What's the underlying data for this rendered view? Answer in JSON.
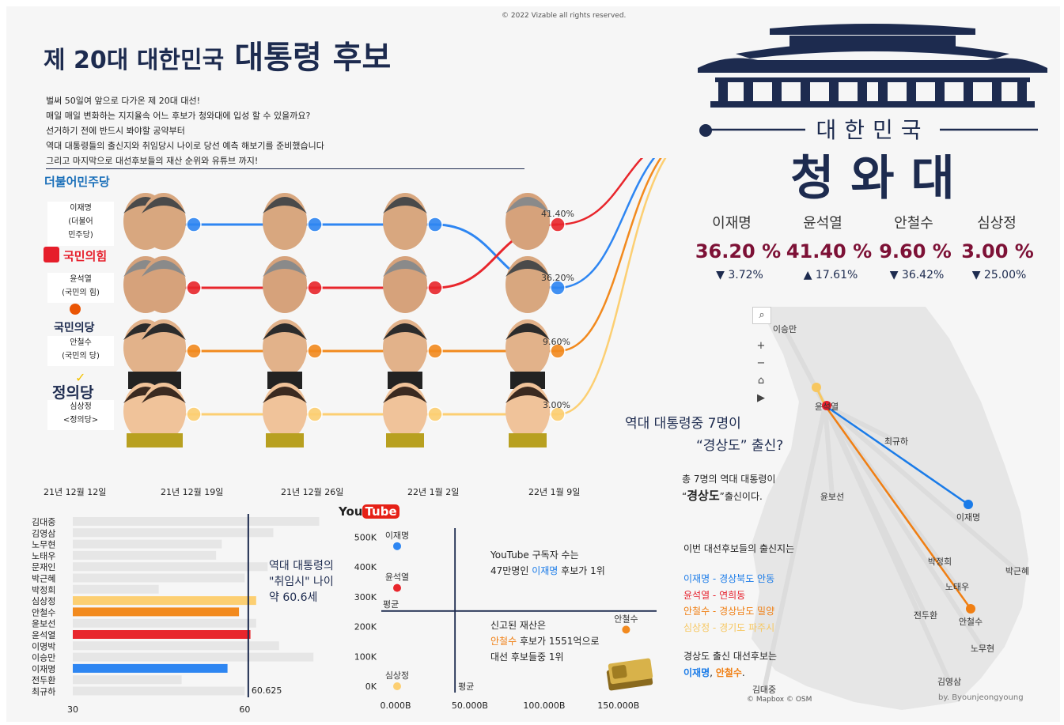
{
  "copyright": "© 2022 Vizable all rights reserved.",
  "title": {
    "part1": "제 20대 대한민국",
    "part2": "대통령 후보"
  },
  "intro": [
    "벌써 50일여 앞으로 다가온 제 20대 대선!",
    "매일 매일 변화하는 지지율속 어느 후보가 청와대에 입성 할 수 있을까요?",
    "선거하기 전에 반드시 봐야할 공약부터",
    "역대 대통령들의 출신지와 취임당시 나이로 당선 예측 해보기를 준비했습니다",
    "그리고 마지막으로 대선후보들의 재산 순위와 유튜브 까지!"
  ],
  "logo": {
    "top": "대한민국",
    "bottom": "청 와 대"
  },
  "parties": [
    {
      "logo": "더불어민주당",
      "color": "#1a6fb9",
      "line1": "이재명",
      "line2": "(더불어",
      "line3": "민주당)"
    },
    {
      "logo": "국민의힘",
      "color": "#e61e2b",
      "line1": "윤석열",
      "line2": "(국민의 힘)",
      "line3": ""
    },
    {
      "logo": "국민의당",
      "color": "#ea5504",
      "line1": "안철수",
      "line2": "(국민의 당)",
      "line3": ""
    },
    {
      "logo": "정의당",
      "color": "#1d2b4f",
      "line1": "심상정",
      "line2": "<정의당>",
      "line3": ""
    }
  ],
  "stats": [
    {
      "name": "이재명",
      "pct": "36.20 %",
      "chg_arrow": "▼",
      "chg": "3.72%"
    },
    {
      "name": "윤석열",
      "pct": "41.40 %",
      "chg_arrow": "▲",
      "chg": "17.61%"
    },
    {
      "name": "안철수",
      "pct": "9.60 %",
      "chg_arrow": "▼",
      "chg": "36.42%"
    },
    {
      "name": "심상정",
      "pct": "3.00 %",
      "chg_arrow": "▼",
      "chg": "25.00%"
    }
  ],
  "bump_labels": {
    "yoon": "41.40%",
    "lee": "36.20%",
    "ahn": "9.60%",
    "sim": "3.00%"
  },
  "map": {
    "heading1": "역대 대통령중 7명이",
    "heading2": "“경상도” 출신?",
    "sub1": "총 7명의 역대 대통령이",
    "sub2a": "“",
    "sub2b": "경상도",
    "sub2c": "”출신이다.",
    "born_title": "이번 대선후보들의 출신지는",
    "born": [
      {
        "text": "이재명 - 경상북도 안동",
        "color": "#1a7be8"
      },
      {
        "text": "윤석열 -  연희동",
        "color": "#e61e2b"
      },
      {
        "text": "안철수 - 경상남도 밀양",
        "color": "#f07f13"
      },
      {
        "text": "심상정 - 경기도 파주시",
        "color": "#f7c760"
      }
    ],
    "gs_title": "경상도 출신 대선후보는",
    "gs_a": "이재명",
    "gs_sep": ", ",
    "gs_b": "안철수",
    "gs_end": ".",
    "credit": "© Mapbox  © OSM",
    "author": "by. Byounjeongyoung",
    "buttons": [
      "search-icon",
      "zoom-in-icon",
      "zoom-out-icon",
      "home-icon",
      "play-icon"
    ],
    "cities": [
      "이승만",
      "윤석열",
      "최규하",
      "윤보선",
      "이재명",
      "박정희",
      "박근혜",
      "노태우",
      "전두환",
      "안철수",
      "노무현",
      "김영삼",
      "김대중"
    ]
  },
  "age_note": {
    "l1": "역대 대통령의",
    "l2": "\"취임시\" 나이",
    "l3": "약 60.6세"
  },
  "yt_note": {
    "l1": "YouTube 구독자 수는",
    "l2a": "47만명인 ",
    "l2b": "이재명",
    "l2c": " 후보가 1위"
  },
  "asset_note": {
    "l1": "신고된 재산은",
    "l2a": "안철수",
    "l2b": " 후보가 1551억으로",
    "l3": "대선 후보들중 1위"
  },
  "youtube_logo": {
    "you": "You",
    "tube": "Tube"
  },
  "chart_data": [
    {
      "type": "line",
      "title": "",
      "categories": [
        "21년 12월 12일",
        "21년 12월 19일",
        "21년 12월 26일",
        "22년 1월 2일",
        "22년 1월 9일"
      ],
      "series": [
        {
          "name": "이재명",
          "rank": [
            1,
            1,
            1,
            1,
            2
          ],
          "color": "#2e86f2"
        },
        {
          "name": "윤석열",
          "rank": [
            2,
            2,
            2,
            2,
            1
          ],
          "color": "#e8262c"
        },
        {
          "name": "안철수",
          "rank": [
            3,
            3,
            3,
            3,
            3
          ],
          "color": "#f28a1e"
        },
        {
          "name": "심상정",
          "rank": [
            4,
            4,
            4,
            4,
            4
          ],
          "color": "#fccf72"
        }
      ],
      "final_values": [
        36.2,
        41.4,
        9.6,
        3.0
      ]
    },
    {
      "type": "bar",
      "title": "",
      "categories": [
        "김대중",
        "김영삼",
        "노무현",
        "노태우",
        "문재인",
        "박근혜",
        "박정희",
        "심상정",
        "안철수",
        "윤보선",
        "윤석열",
        "이명박",
        "이승만",
        "이재명",
        "전두환",
        "최규하"
      ],
      "values": [
        73,
        65,
        56,
        55,
        64,
        60,
        45,
        62,
        59,
        62,
        61,
        66,
        72,
        57,
        49,
        60
      ],
      "colors": [
        "#e6e6e6",
        "#e6e6e6",
        "#e6e6e6",
        "#e6e6e6",
        "#e6e6e6",
        "#e6e6e6",
        "#e6e6e6",
        "#fccf72",
        "#f28a1e",
        "#e6e6e6",
        "#e8262c",
        "#e6e6e6",
        "#e6e6e6",
        "#2e86f2",
        "#e6e6e6",
        "#e6e6e6"
      ],
      "xlim": [
        30,
        75
      ],
      "xticks": [
        30,
        60
      ],
      "reference_line": 60.625,
      "reference_label": "60.625"
    },
    {
      "type": "scatter",
      "title": "",
      "points": [
        {
          "name": "이재명",
          "x": 1,
          "y": 470000,
          "color": "#2e86f2"
        },
        {
          "name": "윤석열",
          "x": 3,
          "y": 330000,
          "color": "#e8262c"
        },
        {
          "name": "안철수",
          "x": 155100,
          "y": 190000,
          "color": "#f28a1e"
        },
        {
          "name": "심상정",
          "x": 1,
          "y": 0,
          "color": "#fccf72"
        }
      ],
      "xticks": [
        "0.000B",
        "50.000B",
        "100.000B",
        "150.000B"
      ],
      "yticks": [
        "0K",
        "100K",
        "200K",
        "300K",
        "400K",
        "500K"
      ],
      "xlim": [
        0,
        165000
      ],
      "ylim": [
        0,
        520000
      ],
      "avg_x": 40000,
      "avg_y": 252500,
      "avg_label": "평균"
    }
  ]
}
